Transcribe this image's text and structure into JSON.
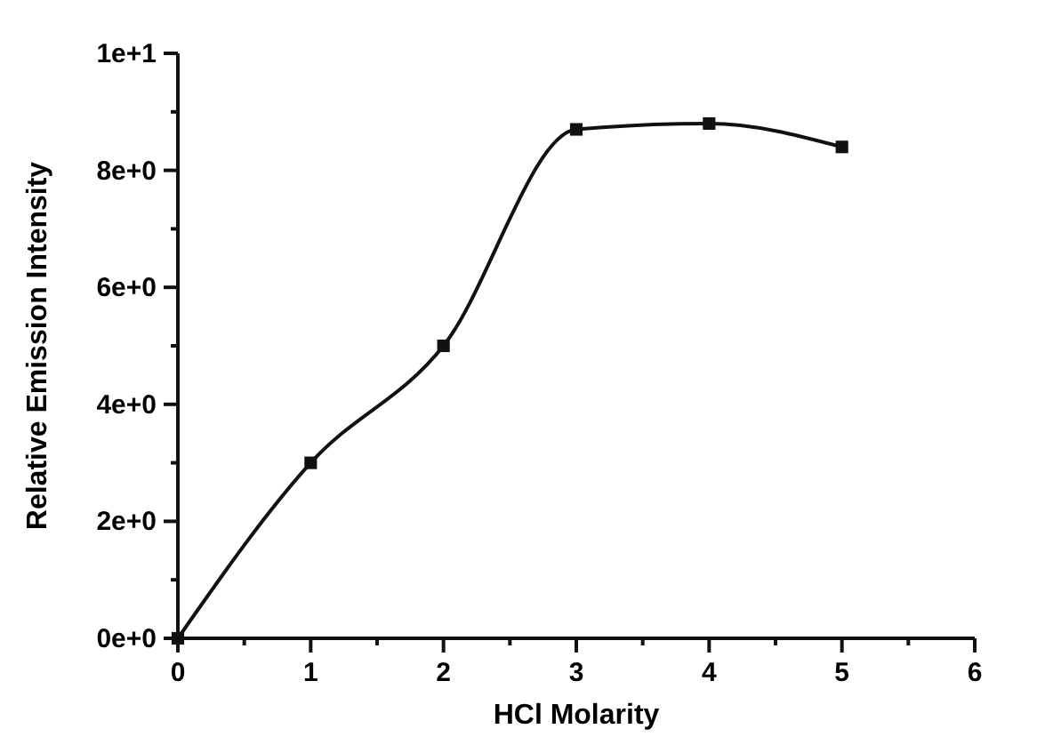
{
  "chart_data": {
    "type": "line",
    "xlabel": "HCl Molarity",
    "ylabel": "Relative Emission Intensity",
    "x": [
      0,
      1,
      2,
      3,
      4,
      5
    ],
    "series": [
      {
        "color": "#111111",
        "values": [
          0,
          3,
          5,
          8.7,
          8.8,
          8.4
        ]
      }
    ],
    "xlim": [
      0,
      6
    ],
    "xticks": [
      0,
      {
        "value": 0.5,
        "label": null
      },
      1,
      {
        "value": 1.5,
        "label": null
      },
      2,
      {
        "value": 2.5,
        "label": null
      },
      3,
      {
        "value": 3.5,
        "label": null
      },
      4,
      {
        "value": 4.5,
        "label": null
      },
      5,
      {
        "value": 5.5,
        "label": null
      },
      6
    ],
    "ylim": [
      0,
      10
    ],
    "yticks": [
      {
        "value": 0,
        "label": "0e+0"
      },
      {
        "value": 1,
        "label": null
      },
      {
        "value": 2,
        "label": "2e+0"
      },
      {
        "value": 3,
        "label": null
      },
      {
        "value": 4,
        "label": "4e+0"
      },
      {
        "value": 5,
        "label": null
      },
      {
        "value": 6,
        "label": "6e+0"
      },
      {
        "value": 7,
        "label": null
      },
      {
        "value": 8,
        "label": "8e+0"
      },
      {
        "value": 9,
        "label": null
      },
      {
        "value": 10,
        "label": "1e+1"
      }
    ],
    "marker": "square"
  }
}
